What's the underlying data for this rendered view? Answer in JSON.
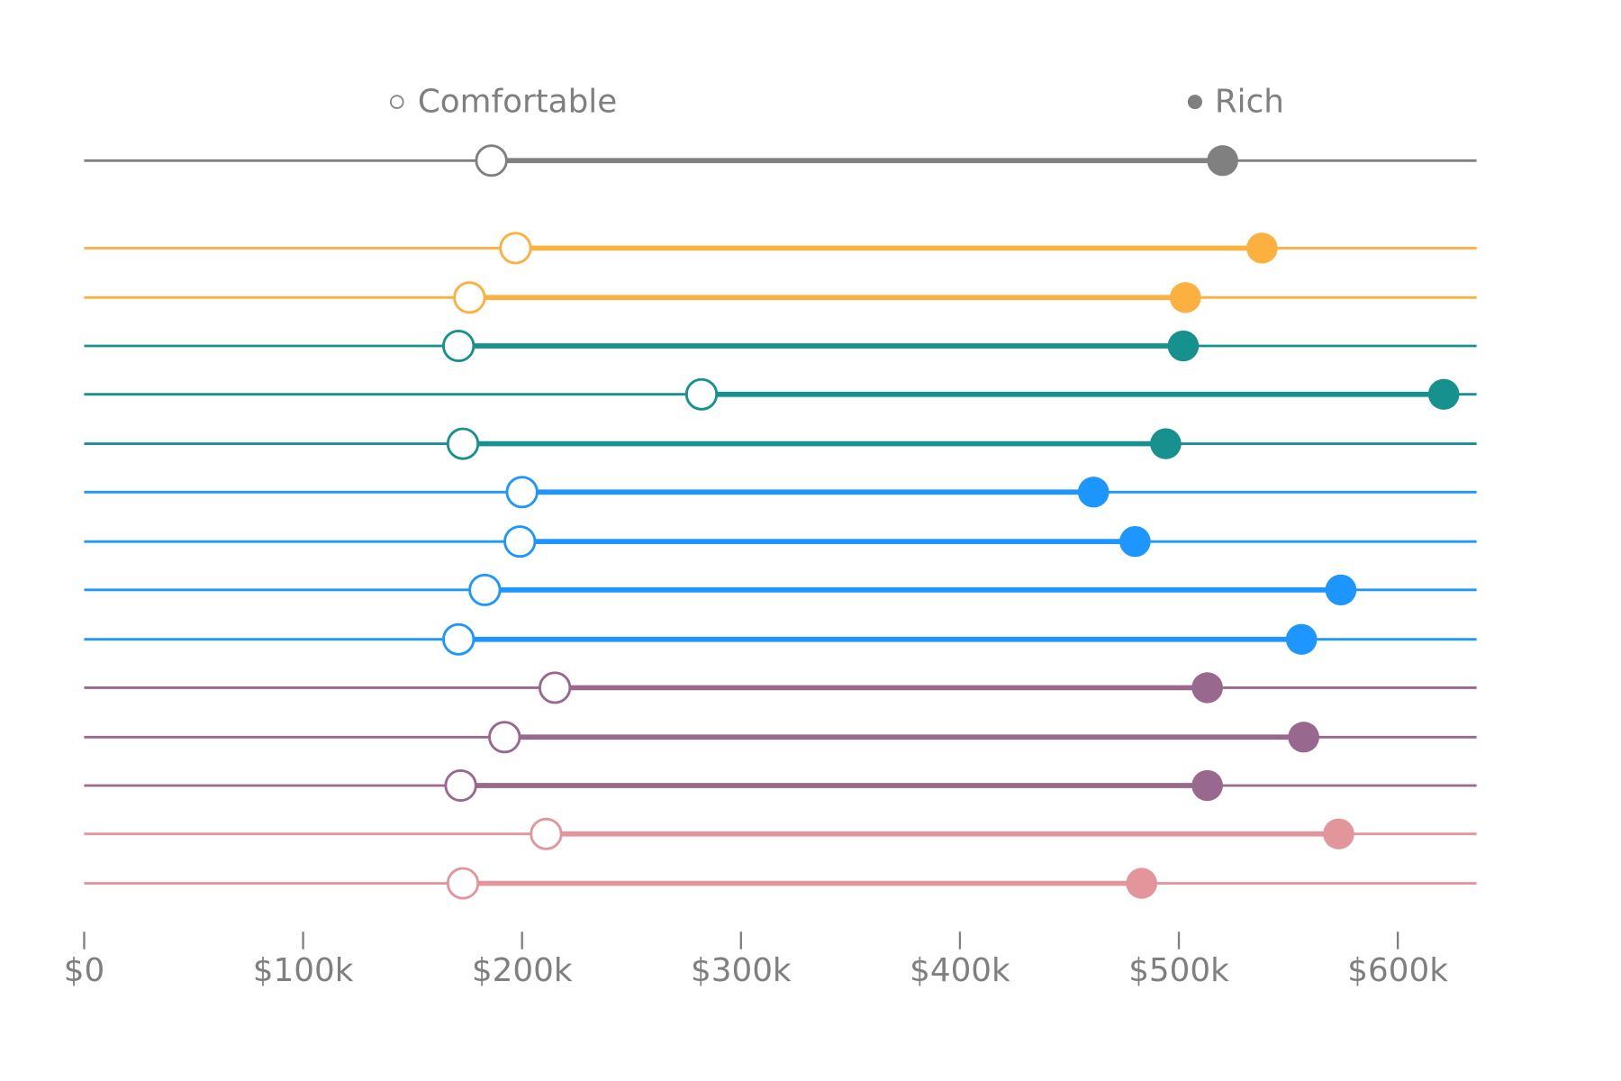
{
  "chart_data": {
    "type": "dumbbell",
    "title": "",
    "xlabel": "",
    "ylabel": "",
    "xlim": [
      0,
      636
    ],
    "x_unit": "$k",
    "x_ticks": [
      0,
      100,
      200,
      300,
      400,
      500,
      600
    ],
    "x_tick_labels": [
      "$0",
      "$100k",
      "$200k",
      "$300k",
      "$400k",
      "$500k",
      "$600k"
    ],
    "grid": false,
    "legend": {
      "placement": "top",
      "entries": [
        {
          "label": "Comfortable",
          "marker": "hollow-circle"
        },
        {
          "label": "Rich",
          "marker": "filled-circle"
        }
      ]
    },
    "rows": [
      {
        "comfortable": 186,
        "rich": 520,
        "color": "#808080"
      },
      {
        "comfortable": 197,
        "rich": 538,
        "color": "#FBB040"
      },
      {
        "comfortable": 176,
        "rich": 503,
        "color": "#FBB040"
      },
      {
        "comfortable": 171,
        "rich": 502,
        "color": "#17918E"
      },
      {
        "comfortable": 282,
        "rich": 621,
        "color": "#17918E"
      },
      {
        "comfortable": 173,
        "rich": 494,
        "color": "#17918E"
      },
      {
        "comfortable": 200,
        "rich": 461,
        "color": "#1E96FF"
      },
      {
        "comfortable": 199,
        "rich": 480,
        "color": "#1E96FF"
      },
      {
        "comfortable": 183,
        "rich": 574,
        "color": "#1E96FF"
      },
      {
        "comfortable": 171,
        "rich": 556,
        "color": "#1E96FF"
      },
      {
        "comfortable": 215,
        "rich": 513,
        "color": "#98688F"
      },
      {
        "comfortable": 192,
        "rich": 557,
        "color": "#98688F"
      },
      {
        "comfortable": 172,
        "rich": 513,
        "color": "#98688F"
      },
      {
        "comfortable": 211,
        "rich": 573,
        "color": "#E3959C"
      },
      {
        "comfortable": 173,
        "rich": 483,
        "color": "#E3959C"
      }
    ]
  }
}
